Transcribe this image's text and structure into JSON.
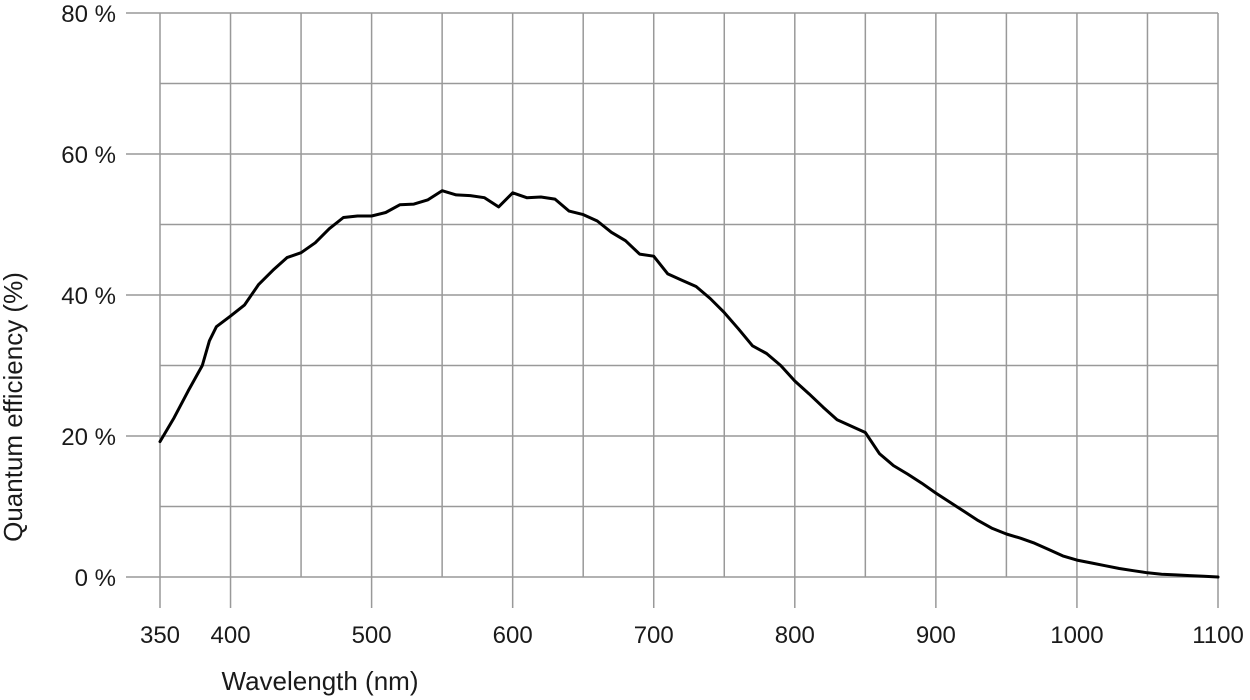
{
  "chart_data": {
    "type": "line",
    "title": "",
    "xlabel": "Wavelength (nm)",
    "ylabel": "Quantum efficiency (%)",
    "xlim": [
      350,
      1100
    ],
    "ylim": [
      0,
      80
    ],
    "x_ticks": [
      350,
      400,
      500,
      600,
      700,
      800,
      900,
      1000,
      1100
    ],
    "x_tick_labels": [
      "350",
      "400",
      "500",
      "600",
      "700",
      "800",
      "900",
      "1000",
      "1100"
    ],
    "x_gridlines": [
      350,
      400,
      450,
      500,
      550,
      600,
      650,
      700,
      750,
      800,
      850,
      900,
      950,
      1000,
      1050,
      1100
    ],
    "y_ticks": [
      0,
      20,
      40,
      60,
      80
    ],
    "y_tick_labels": [
      "0 %",
      "20 %",
      "40 %",
      "60 %",
      "80 %"
    ],
    "y_gridlines": [
      0,
      10,
      20,
      30,
      40,
      50,
      60,
      70,
      80
    ],
    "grid": true,
    "line_color": "#000000",
    "grid_color": "#999999",
    "series": [
      {
        "x": [
          350,
          360,
          370,
          380,
          385,
          390,
          400,
          410,
          420,
          430,
          440,
          450,
          460,
          470,
          480,
          490,
          500,
          510,
          520,
          530,
          540,
          550,
          560,
          570,
          580,
          590,
          600,
          610,
          620,
          630,
          640,
          650,
          660,
          670,
          680,
          690,
          700,
          710,
          720,
          730,
          740,
          750,
          760,
          770,
          780,
          790,
          800,
          810,
          820,
          830,
          840,
          850,
          860,
          870,
          880,
          890,
          900,
          910,
          920,
          930,
          940,
          950,
          960,
          970,
          980,
          990,
          1000,
          1010,
          1020,
          1030,
          1040,
          1050,
          1060,
          1070,
          1080,
          1090,
          1100
        ],
        "y": [
          19.2,
          22.6,
          26.4,
          30.0,
          33.5,
          35.5,
          37.0,
          38.6,
          41.5,
          43.5,
          45.3,
          46.0,
          47.4,
          49.4,
          51.0,
          51.2,
          51.2,
          51.7,
          52.8,
          52.9,
          53.5,
          54.8,
          54.2,
          54.1,
          53.8,
          52.5,
          54.5,
          53.8,
          53.9,
          53.6,
          51.9,
          51.4,
          50.5,
          48.9,
          47.7,
          45.8,
          45.5,
          43.0,
          42.1,
          41.2,
          39.5,
          37.5,
          35.2,
          32.8,
          31.7,
          30.0,
          27.8,
          26.0,
          24.1,
          22.3,
          21.4,
          20.5,
          17.5,
          15.8,
          14.6,
          13.3,
          11.9,
          10.6,
          9.3,
          8.0,
          6.9,
          6.1,
          5.5,
          4.8,
          3.9,
          3.0,
          2.4,
          2.0,
          1.6,
          1.2,
          0.9,
          0.6,
          0.4,
          0.3,
          0.2,
          0.1,
          0.0
        ]
      }
    ]
  }
}
